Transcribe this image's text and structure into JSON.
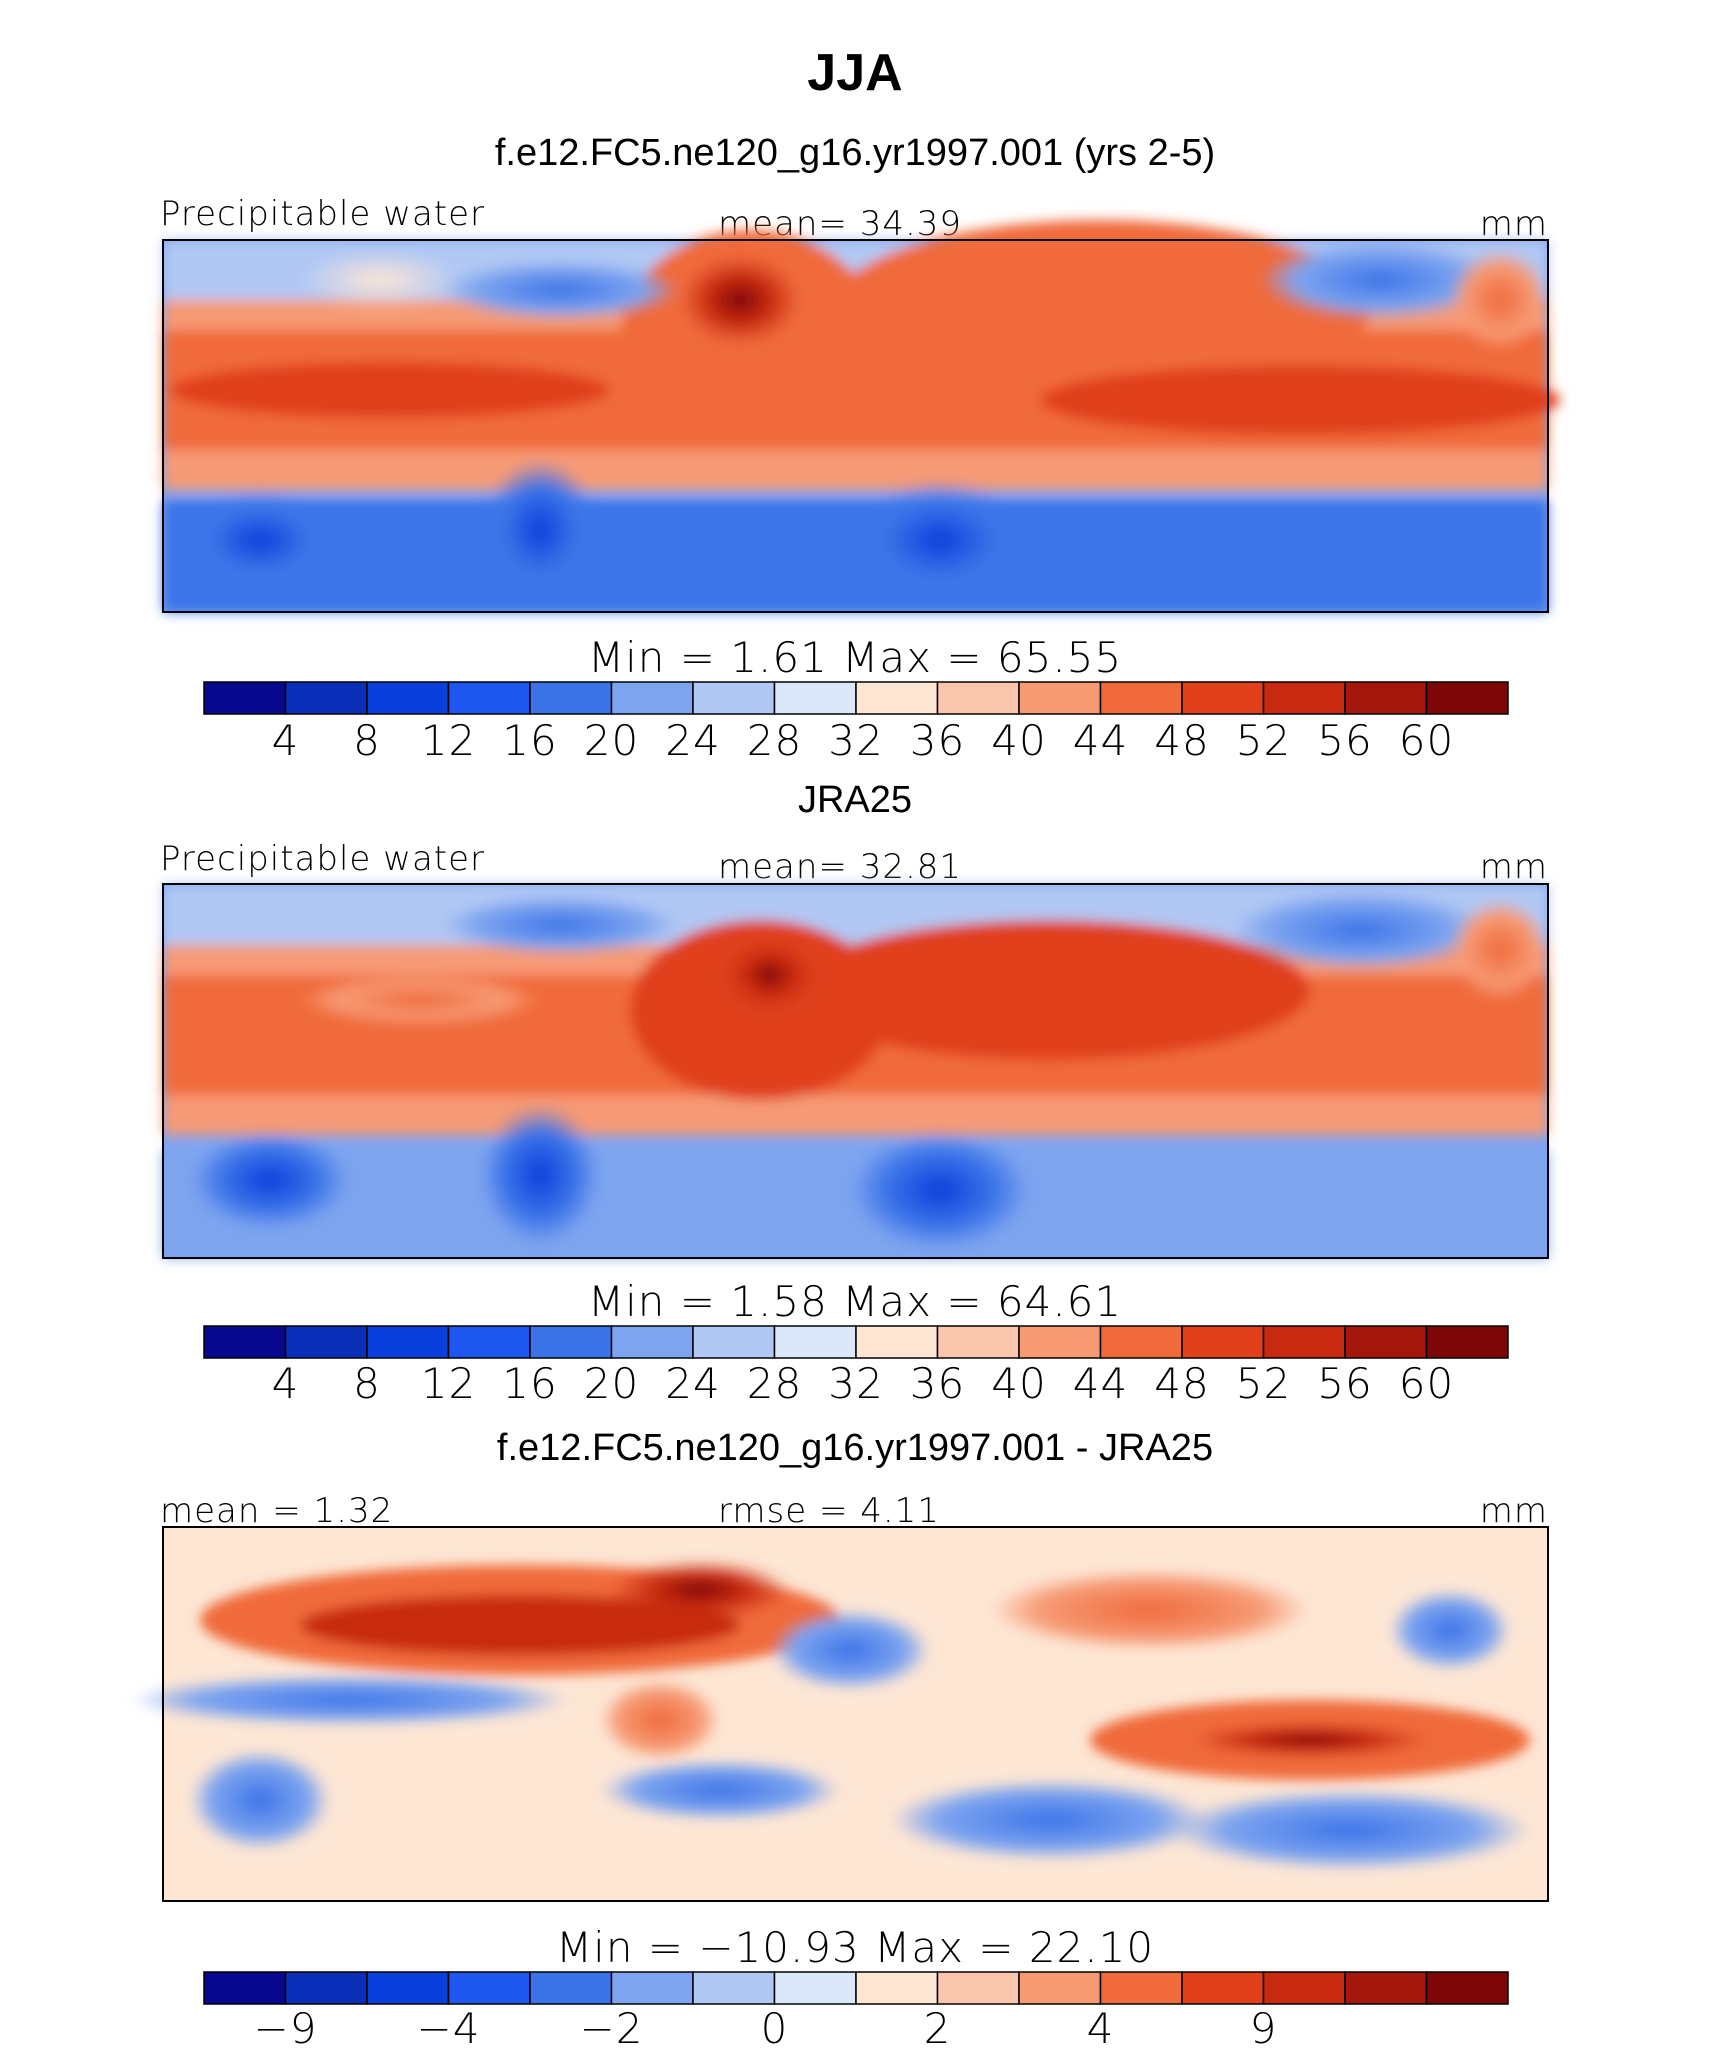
{
  "figure": {
    "title": "JJA",
    "colors": {
      "full_palette": [
        "#08088f",
        "#0a2fb8",
        "#0b3fdc",
        "#1e56f0",
        "#3b74e8",
        "#7da4ef",
        "#b1c8f4",
        "#dbe7fb",
        "#fde6d4",
        "#f9c5ac",
        "#f69a74",
        "#f06a3b",
        "#e0401a",
        "#c72a10",
        "#a5160c",
        "#7d0606"
      ],
      "diff_palette": [
        "#08088f",
        "#0a2fb8",
        "#0b3fdc",
        "#1e56f0",
        "#3b74e8",
        "#7da4ef",
        "#b1c8f4",
        "#dbe7fb",
        "#fde6d4",
        "#f9c5ac",
        "#f69a74",
        "#f06a3b",
        "#e0401a",
        "#c72a10",
        "#a5160c",
        "#7d0606"
      ]
    }
  },
  "chart_data": [
    {
      "type": "heatmap",
      "subtitle": "f.e12.FC5.ne120_g16.yr1997.001 (yrs 2-5)",
      "left_label": "Precipitable water",
      "center_label": "mean=   34.39",
      "right_label": "mm",
      "stats": "Min =    1.61  Max =   65.55",
      "colorbar_ticks": [
        "4",
        "8",
        "12",
        "16",
        "20",
        "24",
        "28",
        "32",
        "36",
        "40",
        "44",
        "48",
        "52",
        "56",
        "60"
      ],
      "min": 1.61,
      "max": 65.55,
      "mean": 34.39
    },
    {
      "type": "heatmap",
      "subtitle": "JRA25",
      "left_label": "Precipitable water",
      "center_label": "mean=   32.81",
      "right_label": "mm",
      "stats": "Min =    1.58  Max =   64.61",
      "colorbar_ticks": [
        "4",
        "8",
        "12",
        "16",
        "20",
        "24",
        "28",
        "32",
        "36",
        "40",
        "44",
        "48",
        "52",
        "56",
        "60"
      ],
      "min": 1.58,
      "max": 64.61,
      "mean": 32.81
    },
    {
      "type": "heatmap",
      "subtitle": "f.e12.FC5.ne120_g16.yr1997.001 - JRA25",
      "left_label": "mean =    1.32",
      "center_label": "rmse =    4.11",
      "right_label": "mm",
      "stats": "Min = −10.93  Max =   22.10",
      "colorbar_ticks": [
        "−9",
        "",
        "−4",
        "",
        "−2",
        "",
        "0",
        "",
        "2",
        "",
        "4",
        "",
        "9",
        "",
        "",
        ""
      ],
      "min": -10.93,
      "max": 22.1,
      "mean": 1.32,
      "rmse": 4.11
    }
  ]
}
